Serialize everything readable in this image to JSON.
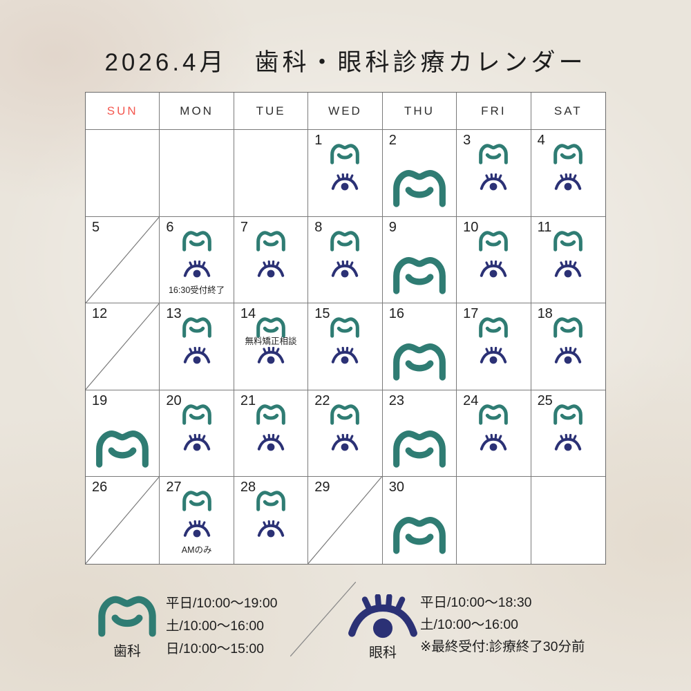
{
  "title": "2026.4月　歯科・眼科診療カレンダー",
  "colors": {
    "dental_teal": "#2f7c73",
    "eye_navy": "#2b3175",
    "holiday_red": "#f4574f",
    "grid_border": "#7a7a7a"
  },
  "calendar": {
    "weekdays": [
      {
        "label": "SUN",
        "red": true
      },
      {
        "label": "MON",
        "red": false
      },
      {
        "label": "TUE",
        "red": false
      },
      {
        "label": "WED",
        "red": false
      },
      {
        "label": "THU",
        "red": false
      },
      {
        "label": "FRI",
        "red": false
      },
      {
        "label": "SAT",
        "red": false
      }
    ],
    "weeks": [
      [
        {},
        {},
        {},
        {
          "day": "1",
          "dental": "small",
          "eye": true
        },
        {
          "day": "2",
          "dental": "large"
        },
        {
          "day": "3",
          "dental": "small",
          "eye": true
        },
        {
          "day": "4",
          "dental": "small",
          "eye": true
        }
      ],
      [
        {
          "day": "5",
          "red": true,
          "slash": true
        },
        {
          "day": "6",
          "dental": "small",
          "eye": true,
          "note": "16:30受付終了",
          "note_pos": "bottom"
        },
        {
          "day": "7",
          "dental": "small",
          "eye": true
        },
        {
          "day": "8",
          "dental": "small",
          "eye": true
        },
        {
          "day": "9",
          "dental": "large"
        },
        {
          "day": "10",
          "dental": "small",
          "eye": true
        },
        {
          "day": "11",
          "dental": "small",
          "eye": true
        }
      ],
      [
        {
          "day": "12",
          "red": true,
          "slash": true
        },
        {
          "day": "13",
          "dental": "small",
          "eye": true
        },
        {
          "day": "14",
          "dental": "small",
          "eye": true,
          "note": "無料矯正相談",
          "note_pos": "mid"
        },
        {
          "day": "15",
          "dental": "small",
          "eye": true
        },
        {
          "day": "16",
          "dental": "large"
        },
        {
          "day": "17",
          "dental": "small",
          "eye": true
        },
        {
          "day": "18",
          "dental": "small",
          "eye": true
        }
      ],
      [
        {
          "day": "19",
          "red": true,
          "dental": "large"
        },
        {
          "day": "20",
          "dental": "small",
          "eye": true
        },
        {
          "day": "21",
          "dental": "small",
          "eye": true
        },
        {
          "day": "22",
          "dental": "small",
          "eye": true
        },
        {
          "day": "23",
          "dental": "large"
        },
        {
          "day": "24",
          "dental": "small",
          "eye": true
        },
        {
          "day": "25",
          "dental": "small",
          "eye": true
        }
      ],
      [
        {
          "day": "26",
          "red": true,
          "slash": true
        },
        {
          "day": "27",
          "dental": "small",
          "eye": true,
          "note": "AMのみ",
          "note_pos": "bottom"
        },
        {
          "day": "28",
          "dental": "small",
          "eye": true
        },
        {
          "day": "29",
          "red": true,
          "slash": true
        },
        {
          "day": "30",
          "dental": "large"
        },
        {},
        {}
      ]
    ]
  },
  "legend": {
    "dental": {
      "label": "歯科",
      "hours": [
        "平日/10:00〜19:00",
        "土/10:00〜16:00",
        "日/10:00〜15:00"
      ]
    },
    "eye": {
      "label": "眼科",
      "hours": [
        "平日/10:00〜18:30",
        "土/10:00〜16:00",
        "※最終受付:診療終了30分前"
      ]
    }
  }
}
